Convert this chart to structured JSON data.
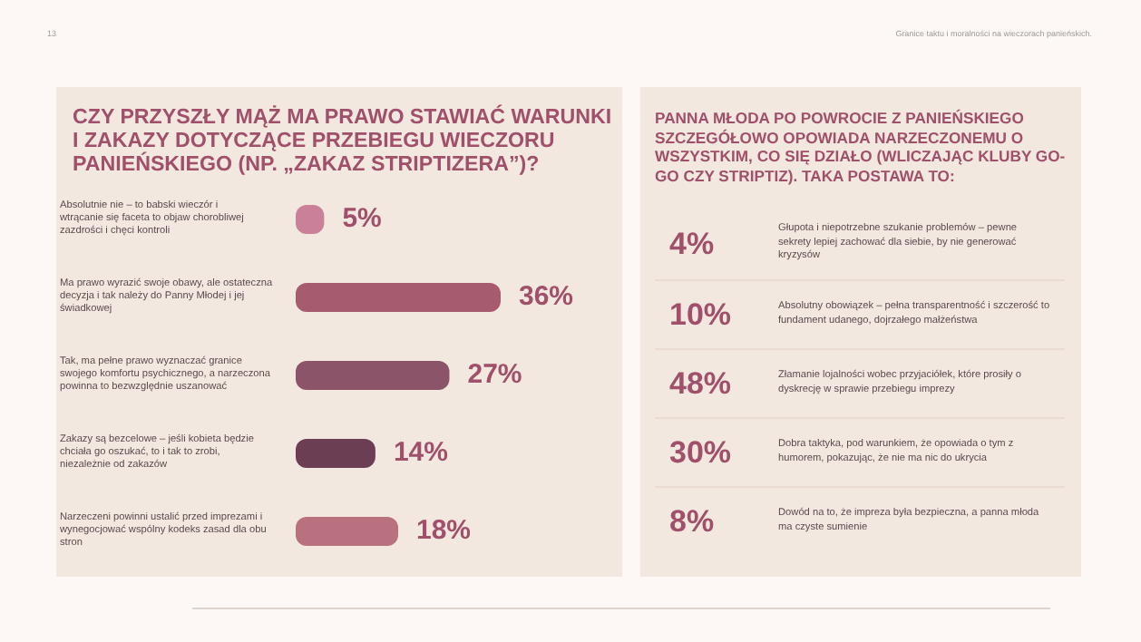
{
  "chart_data": [
    {
      "type": "bar",
      "orientation": "horizontal",
      "title": "CZY PRZYSZŁY MĄŻ MA PRAWO STAWIAĆ WARUNKI I ZAKAZY DOTYCZĄCE PRZEBIEGU WIECZORU PANIEŃSKIEGO (NP. „ZAKAZ STRIPTIZERA”)?",
      "annotations": [
        "13",
        "Granice taktu i moralności na wieczorach panieńskich."
      ],
      "categories": [
        "Absolutnie nie – to babski wieczór i wtrącanie się faceta to objaw chorobliwej zazdrości i chęci kontroli",
        "Ma prawo wyrazić swoje obawy, ale ostateczna decyzja i tak należy do Panny Młodej i jej świadkowej",
        "Tak, ma pełne prawo wyznaczać granice swojego komfortu psychicznego, a narzeczona powinna to bezwzględnie uszanować",
        "Zakazy są bezcelowe – jeśli kobieta będzie chciała go oszukać, to i tak to zrobi, niezależnie od zakazów",
        "Narzeczeni powinni ustalić przed imprezami i wynegocjować wspólny kodeks zasad dla obu stron"
      ],
      "values": [
        5,
        36,
        27,
        14,
        18
      ],
      "value_labels": [
        "5%",
        "36%",
        "27%",
        "14%",
        "18%"
      ],
      "colors": [
        "#c98098",
        "#a65b6f",
        "#8b5468",
        "#6b3e54",
        "#b9707f"
      ],
      "tick_labels": "y"
    },
    {
      "type": "other",
      "title": "PANNA MŁODA PO POWROCIE Z PANIEŃSKIEGO SZCZEGÓŁOWO OPOWIADA NARZECZONEMU O WSZYSTKIM, CO SIĘ DZIAŁO (WLICZAJĄC KLUBY GO-GO CZY STRIPTIZ). TAKA POSTAWA TO:",
      "categories": [
        "Głupota i niepotrzebne szukanie problemów – pewne sekrety lepiej zachować dla siebie, by nie generować kryzysów",
        "Absolutny obowiązek – pełna transparentność i szczerość to fundament udanego, dojrzałego małżeństwa",
        "Złamanie lojalności wobec przyjaciółek, które prosiły o dyskrecję w sprawie przebiegu imprezy",
        "Dobra taktyka, pod warunkiem, że opowiada o tym z humorem, pokazując, że nie ma nic do ukrycia",
        "Dowód na to, że impreza była bezpieczna, a panna młoda ma czyste sumienie"
      ],
      "values": [
        4,
        10,
        48,
        30,
        8
      ],
      "value_labels": [
        "4%",
        "10%",
        "48%",
        "30%",
        "8%"
      ]
    }
  ]
}
